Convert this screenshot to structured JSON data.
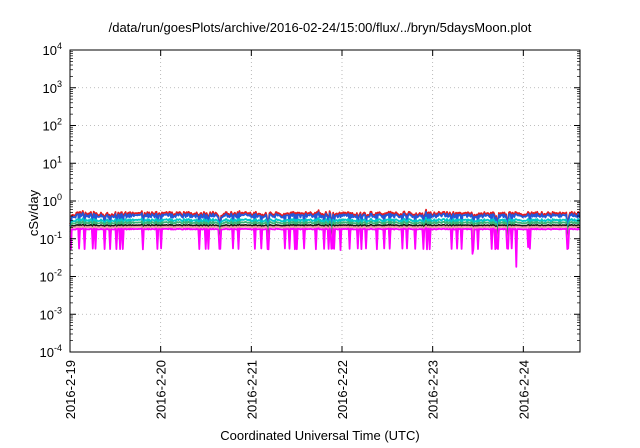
{
  "chart_data": {
    "type": "line",
    "title": "/data/run/goesPlots/archive/2016-02-24/15:00/flux/../bryn/5daysMoon.plot",
    "xlabel": "Coordinated Universal Time (UTC)",
    "ylabel": "cSv/day",
    "x_start": "2016-2-19",
    "x_end": "2016-2-24 15:00",
    "x_range_days": [
      0,
      5.625
    ],
    "xticks": [
      "2016-2-19",
      "2016-2-20",
      "2016-2-21",
      "2016-2-22",
      "2016-2-23",
      "2016-2-24"
    ],
    "y_scale": "log",
    "ylim": [
      0.0001,
      10000
    ],
    "ytick_exponents": [
      -4,
      -3,
      -2,
      -1,
      0,
      1,
      2,
      3,
      4
    ],
    "ytick_base": "10",
    "grid": true,
    "legend": "none",
    "series": [
      {
        "color": "#e41a1c",
        "baseline": 0.46,
        "amp": 0.13,
        "dip_depth": 0.55
      },
      {
        "color": "#2457d6",
        "baseline": 0.41,
        "amp": 0.12,
        "dip_depth": 0.55
      },
      {
        "color": "#00c9c9",
        "baseline": 0.31,
        "amp": 0.08,
        "dip_depth": 0.5
      },
      {
        "color": "#3cb371",
        "baseline": 0.265,
        "amp": 0.06,
        "dip_depth": 0.45
      },
      {
        "color": "#111111",
        "baseline": 0.225,
        "amp": 0.04,
        "dip_depth": 0.4
      },
      {
        "color": "#e6a0a0",
        "baseline": 0.205,
        "amp": 0.03,
        "dip_depth": 0.35
      },
      {
        "color": "#ff00ff",
        "baseline": 0.18,
        "amp": 0.03,
        "dip_depth": 0.3
      }
    ],
    "magenta_spikes": [
      {
        "day": 2.98,
        "value": 0.05
      },
      {
        "day": 4.92,
        "value": 0.018
      },
      {
        "day": 4.44,
        "value": 0.04
      },
      {
        "day": 5.05,
        "value": 0.06
      }
    ]
  }
}
